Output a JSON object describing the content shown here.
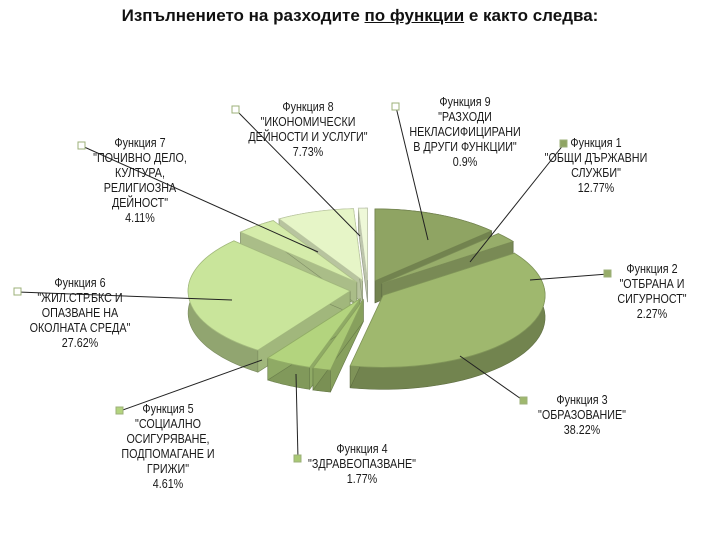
{
  "slide": {
    "title_before": "Изпълнението на разходите ",
    "title_underlined": "по функции",
    "title_after": " е както следва:"
  },
  "chart_data": {
    "type": "pie",
    "title": "",
    "slices": [
      {
        "name": "Функция 1",
        "lines": [
          "\"ОБЩИ ДЪРЖАВНИ",
          "СЛУЖБИ\""
        ],
        "value": 12.77,
        "label": "12.77%",
        "color": "#8fa463"
      },
      {
        "name": "Функция 2",
        "lines": [
          "\"ОТБРАНА И",
          "СИГУРНОСТ\""
        ],
        "value": 2.27,
        "label": "2.27%",
        "color": "#97ad6a"
      },
      {
        "name": "Функция 3",
        "lines": [
          "\"ОБРАЗОВАНИЕ\""
        ],
        "value": 38.22,
        "label": "38.22%",
        "color": "#9fb86e"
      },
      {
        "name": "Функция 4",
        "lines": [
          "\"ЗДРАВЕОПАЗВАНЕ\""
        ],
        "value": 1.77,
        "label": "1.77%",
        "color": "#a9c874"
      },
      {
        "name": "Функция 5",
        "lines": [
          "\"СОЦИАЛНО",
          "ОСИГУРЯВАНЕ,",
          "ПОДПОМАГАНЕ И",
          "ГРИЖИ\""
        ],
        "value": 4.61,
        "label": "4.61%",
        "color": "#b3d47e"
      },
      {
        "name": "Функция 6",
        "lines": [
          "\"ЖИЛ.СТР.БКС И",
          "ОПАЗВАНЕ НА",
          "ОКОЛНАТА СРЕДА\""
        ],
        "value": 27.62,
        "label": "27.62%",
        "color": "#c9e59b"
      },
      {
        "name": "Функция 7",
        "lines": [
          "\"ПОЧИВНО ДЕЛО,",
          "КУЛТУРА,",
          "РЕЛИГИОЗНА",
          "ДЕЙНОСТ\""
        ],
        "value": 4.11,
        "label": "4.11%",
        "color": "#d5ecaa"
      },
      {
        "name": "Функция 8",
        "lines": [
          "\"ИКОНОМИЧЕСКИ",
          "ДЕЙНОСТИ И УСЛУГИ\""
        ],
        "value": 7.73,
        "label": "7.73%",
        "color": "#e6f5c7"
      },
      {
        "name": "Функция 9",
        "lines": [
          "\"РАЗХОДИ",
          "НЕКЛАСИФИЦИРАНИ",
          "В ДРУГИ ФУНКЦИИ\""
        ],
        "value": 0.9,
        "label": "0.9%",
        "color": "#eef8d8"
      }
    ],
    "exploded": true,
    "style": "3d"
  }
}
